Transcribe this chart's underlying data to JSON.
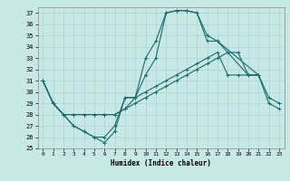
{
  "xlabel": "Humidex (Indice chaleur)",
  "xlim": [
    -0.5,
    23.5
  ],
  "ylim": [
    25,
    37.5
  ],
  "yticks": [
    25,
    26,
    27,
    28,
    29,
    30,
    31,
    32,
    33,
    34,
    35,
    36,
    37
  ],
  "xticks": [
    0,
    1,
    2,
    3,
    4,
    5,
    6,
    7,
    8,
    9,
    10,
    11,
    12,
    13,
    14,
    15,
    16,
    17,
    18,
    19,
    20,
    21,
    22,
    23
  ],
  "bg_color": "#c8e8e8",
  "line_color": "#1a6b6b",
  "grid_color": "#a8d4d4",
  "top_x": [
    0,
    1,
    2,
    3,
    4,
    5,
    6,
    7,
    8,
    9,
    10,
    11,
    12,
    13,
    14,
    15,
    16,
    17,
    20,
    21
  ],
  "top_y": [
    31.0,
    29.0,
    28.0,
    27.0,
    26.5,
    26.0,
    25.5,
    26.5,
    29.5,
    29.5,
    33.0,
    34.5,
    37.0,
    37.2,
    37.2,
    37.0,
    35.0,
    34.5,
    31.5,
    31.5
  ],
  "line2_x": [
    0,
    1,
    2,
    3,
    4,
    5,
    6,
    7,
    8,
    9,
    10,
    11,
    12,
    13,
    14,
    15,
    16,
    17,
    21
  ],
  "line2_y": [
    31.0,
    29.0,
    28.0,
    27.0,
    26.5,
    26.0,
    26.0,
    27.0,
    29.5,
    29.5,
    31.5,
    33.0,
    37.0,
    37.2,
    37.2,
    37.0,
    34.5,
    34.5,
    31.5
  ],
  "line3_x": [
    0,
    1,
    2,
    3,
    4,
    5,
    6,
    7,
    8,
    9,
    10,
    11,
    12,
    13,
    14,
    15,
    16,
    17,
    18,
    19,
    20,
    21,
    22,
    23
  ],
  "line3_y": [
    31.0,
    29.0,
    28.0,
    28.0,
    28.0,
    28.0,
    28.0,
    28.0,
    28.5,
    29.5,
    30.0,
    30.5,
    31.0,
    31.5,
    32.0,
    32.5,
    33.0,
    33.5,
    31.5,
    31.5,
    31.5,
    31.5,
    29.5,
    29.0
  ],
  "line4_x": [
    0,
    1,
    2,
    3,
    4,
    5,
    6,
    7,
    8,
    9,
    10,
    11,
    12,
    13,
    14,
    15,
    16,
    17,
    18,
    19,
    20,
    21,
    22,
    23
  ],
  "line4_y": [
    31.0,
    29.0,
    28.0,
    28.0,
    28.0,
    28.0,
    28.0,
    28.0,
    28.5,
    29.0,
    29.5,
    30.0,
    30.5,
    31.0,
    31.5,
    32.0,
    32.5,
    33.0,
    33.5,
    33.5,
    31.5,
    31.5,
    29.0,
    28.5
  ]
}
